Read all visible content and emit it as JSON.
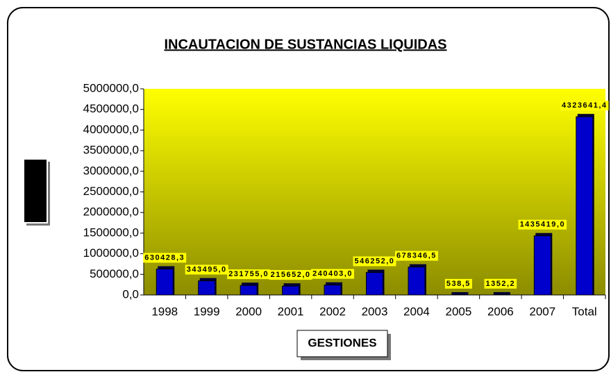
{
  "chart_data": {
    "type": "bar",
    "title": "INCAUTACION DE SUSTANCIAS LIQUIDAS",
    "x_label": "GESTIONES",
    "categories": [
      "1998",
      "1999",
      "2000",
      "2001",
      "2002",
      "2003",
      "2004",
      "2005",
      "2006",
      "2007",
      "Total"
    ],
    "values": [
      630428.3,
      343495.0,
      231755.0,
      215652.0,
      240403.0,
      546252.0,
      678346.5,
      538.5,
      1352.2,
      1435419.0,
      4323641.4
    ],
    "value_labels": [
      "630428,3",
      "343495,0",
      "231755,0",
      "215652,0",
      "240403,0",
      "546252,0",
      "678346,5",
      "538,5",
      "1352,2",
      "1435419,0",
      "4323641,4"
    ],
    "color": "#0000cc",
    "ylim": [
      0,
      5000000
    ],
    "yticks": [
      {
        "value": 0,
        "label": "0,0"
      },
      {
        "value": 500000,
        "label": "500000,0"
      },
      {
        "value": 1000000,
        "label": "1000000,0"
      },
      {
        "value": 1500000,
        "label": "1500000,0"
      },
      {
        "value": 2000000,
        "label": "2000000,0"
      },
      {
        "value": 2500000,
        "label": "2500000,0"
      },
      {
        "value": 3000000,
        "label": "3000000,0"
      },
      {
        "value": 3500000,
        "label": "3500000,0"
      },
      {
        "value": 4000000,
        "label": "4000000,0"
      },
      {
        "value": 4500000,
        "label": "4500000,0"
      },
      {
        "value": 5000000,
        "label": "5000000,0"
      }
    ]
  }
}
